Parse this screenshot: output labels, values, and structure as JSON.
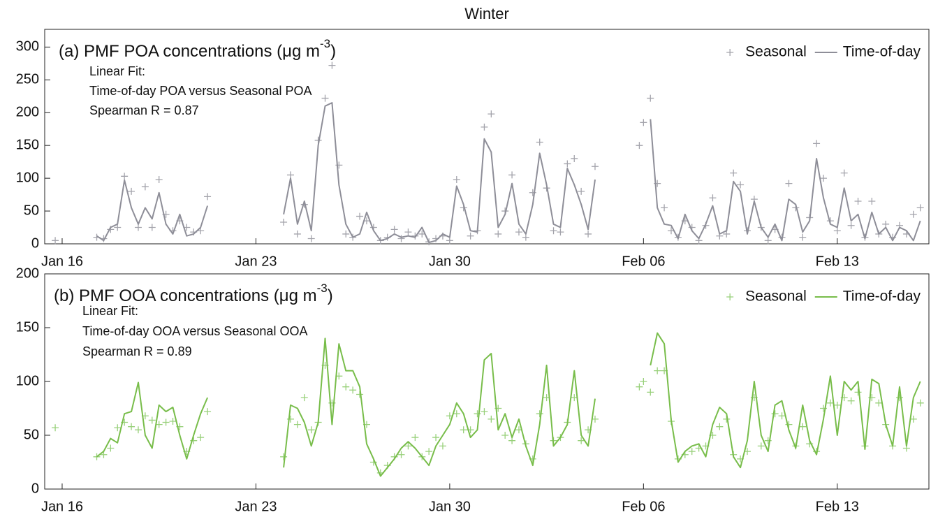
{
  "suptitle": "Winter",
  "chart_data": [
    {
      "type": "line",
      "title": [
        "(a) PMF POA concentrations (μg m",
        "-3",
        ")"
      ],
      "annotations": [
        "Linear Fit:",
        "Time-of-day POA versus Seasonal POA",
        "Spearman R = 0.87"
      ],
      "legend": "upper right",
      "xlim": [
        15.37,
        47.31
      ],
      "xticks": [
        {
          "value": 16,
          "label": "Jan 16"
        },
        {
          "value": 23,
          "label": "Jan 23"
        },
        {
          "value": 30,
          "label": "Jan 30"
        },
        {
          "value": 37,
          "label": "Feb 06"
        },
        {
          "value": 44,
          "label": "Feb 13"
        }
      ],
      "ylim": [
        0,
        327
      ],
      "yticks": [
        0,
        50,
        100,
        150,
        200,
        250,
        300
      ],
      "x": [
        15.75,
        17.25,
        17.5,
        17.75,
        18,
        18.25,
        18.5,
        18.75,
        19,
        19.25,
        19.5,
        19.75,
        20,
        20.25,
        20.5,
        20.75,
        21,
        21.25,
        22.5,
        24,
        24.25,
        24.5,
        24.75,
        25,
        25.25,
        25.5,
        25.75,
        26,
        26.25,
        26.5,
        26.75,
        27,
        27.25,
        27.5,
        27.75,
        28,
        28.25,
        28.5,
        28.75,
        29,
        29.25,
        29.5,
        29.75,
        30,
        30.25,
        30.5,
        30.75,
        31,
        31.25,
        31.5,
        31.75,
        32,
        32.25,
        32.5,
        32.75,
        33,
        33.25,
        33.5,
        33.75,
        34,
        34.25,
        34.5,
        34.75,
        35,
        35.25,
        36.25,
        36.85,
        37,
        37.25,
        37.5,
        37.75,
        38,
        38.25,
        38.5,
        38.75,
        39,
        39.25,
        39.5,
        39.75,
        40,
        40.25,
        40.5,
        40.75,
        41,
        41.25,
        41.5,
        41.75,
        42,
        42.25,
        42.5,
        42.75,
        43,
        43.25,
        43.5,
        43.75,
        44,
        44.25,
        44.5,
        44.75,
        45,
        45.25,
        45.5,
        45.75,
        46,
        46.25,
        46.5,
        46.75,
        47
      ],
      "series": [
        {
          "name": "Seasonal",
          "mode": "markers",
          "color": "#a3a3ab",
          "values": [
            5,
            10,
            8,
            22,
            25,
            103,
            80,
            25,
            87,
            25,
            98,
            45,
            20,
            35,
            25,
            18,
            20,
            72,
            null,
            33,
            105,
            15,
            60,
            8,
            158,
            222,
            272,
            120,
            15,
            10,
            42,
            35,
            25,
            5,
            10,
            22,
            8,
            18,
            12,
            15,
            3,
            8,
            12,
            5,
            98,
            55,
            12,
            20,
            178,
            198,
            15,
            50,
            105,
            18,
            10,
            78,
            155,
            85,
            20,
            18,
            122,
            130,
            80,
            15,
            118,
            null,
            150,
            185,
            222,
            92,
            55,
            20,
            10,
            35,
            25,
            5,
            28,
            70,
            12,
            15,
            108,
            90,
            20,
            68,
            25,
            5,
            22,
            10,
            92,
            55,
            10,
            40,
            153,
            100,
            35,
            20,
            108,
            28,
            65,
            10,
            65,
            15,
            30,
            10,
            28,
            15,
            45,
            55
          ]
        },
        {
          "name": "Time-of-day",
          "mode": "lines",
          "color": "#8e8e98",
          "values": [
            null,
            12,
            5,
            25,
            30,
            97,
            55,
            30,
            55,
            38,
            78,
            30,
            15,
            45,
            12,
            15,
            25,
            58,
            null,
            45,
            100,
            30,
            65,
            20,
            150,
            210,
            215,
            90,
            30,
            10,
            15,
            48,
            20,
            5,
            8,
            15,
            10,
            12,
            10,
            25,
            2,
            5,
            15,
            10,
            88,
            60,
            20,
            18,
            160,
            140,
            25,
            45,
            92,
            30,
            15,
            60,
            138,
            90,
            30,
            25,
            115,
            90,
            60,
            22,
            98,
            null,
            null,
            null,
            190,
            55,
            30,
            28,
            8,
            45,
            20,
            8,
            30,
            58,
            15,
            20,
            95,
            80,
            15,
            65,
            25,
            10,
            30,
            5,
            68,
            60,
            18,
            35,
            130,
            70,
            30,
            25,
            85,
            35,
            45,
            8,
            48,
            15,
            25,
            5,
            25,
            20,
            5,
            35
          ]
        }
      ]
    },
    {
      "type": "line",
      "title": [
        "(b) PMF OOA concentrations (μg m",
        "-3",
        ")"
      ],
      "annotations": [
        "Linear Fit:",
        "Time-of-day OOA versus Seasonal OOA",
        "Spearman R = 0.89"
      ],
      "legend": "upper right",
      "xlim": [
        15.37,
        47.31
      ],
      "xticks": [
        {
          "value": 16,
          "label": "Jan 16"
        },
        {
          "value": 23,
          "label": "Jan 23"
        },
        {
          "value": 30,
          "label": "Jan 30"
        },
        {
          "value": 37,
          "label": "Feb 06"
        },
        {
          "value": 44,
          "label": "Feb 13"
        }
      ],
      "ylim": [
        0,
        200
      ],
      "yticks": [
        0,
        50,
        100,
        150,
        200
      ],
      "x": [
        15.75,
        17.25,
        17.5,
        17.75,
        18,
        18.25,
        18.5,
        18.75,
        19,
        19.25,
        19.5,
        19.75,
        20,
        20.25,
        20.5,
        20.75,
        21,
        21.25,
        22.5,
        24,
        24.25,
        24.5,
        24.75,
        25,
        25.25,
        25.5,
        25.75,
        26,
        26.25,
        26.5,
        26.75,
        27,
        27.25,
        27.5,
        27.75,
        28,
        28.25,
        28.5,
        28.75,
        29,
        29.25,
        29.5,
        29.75,
        30,
        30.25,
        30.5,
        30.75,
        31,
        31.25,
        31.5,
        31.75,
        32,
        32.25,
        32.5,
        32.75,
        33,
        33.25,
        33.5,
        33.75,
        34,
        34.25,
        34.5,
        34.75,
        35,
        35.25,
        36.25,
        36.85,
        37,
        37.25,
        37.5,
        37.75,
        38,
        38.25,
        38.5,
        38.75,
        39,
        39.25,
        39.5,
        39.75,
        40,
        40.25,
        40.5,
        40.75,
        41,
        41.25,
        41.5,
        41.75,
        42,
        42.25,
        42.5,
        42.75,
        43,
        43.25,
        43.5,
        43.75,
        44,
        44.25,
        44.5,
        44.75,
        45,
        45.25,
        45.5,
        45.75,
        46,
        46.25,
        46.5,
        46.75,
        47
      ],
      "series": [
        {
          "name": "Seasonal",
          "mode": "markers",
          "color": "#98d07a",
          "values": [
            57,
            30,
            32,
            38,
            57,
            62,
            58,
            55,
            68,
            64,
            60,
            62,
            63,
            58,
            35,
            45,
            48,
            72,
            null,
            30,
            65,
            60,
            85,
            55,
            62,
            115,
            80,
            105,
            95,
            92,
            88,
            60,
            25,
            15,
            22,
            30,
            32,
            40,
            48,
            30,
            35,
            48,
            40,
            68,
            70,
            55,
            55,
            70,
            72,
            65,
            75,
            50,
            45,
            55,
            42,
            28,
            70,
            85,
            45,
            48,
            62,
            85,
            45,
            55,
            65,
            null,
            95,
            100,
            90,
            110,
            110,
            63,
            28,
            32,
            35,
            38,
            40,
            50,
            58,
            65,
            32,
            28,
            35,
            85,
            40,
            45,
            70,
            68,
            60,
            40,
            58,
            42,
            35,
            75,
            80,
            78,
            85,
            82,
            90,
            40,
            85,
            80,
            60,
            40,
            85,
            38,
            65,
            80
          ]
        },
        {
          "name": "Time-of-day",
          "mode": "lines",
          "color": "#78bd4a",
          "values": [
            null,
            30,
            35,
            47,
            43,
            70,
            72,
            99,
            50,
            38,
            78,
            72,
            76,
            50,
            28,
            50,
            70,
            85,
            null,
            20,
            78,
            75,
            62,
            40,
            62,
            140,
            60,
            135,
            110,
            110,
            95,
            42,
            28,
            12,
            20,
            28,
            38,
            44,
            38,
            30,
            22,
            40,
            50,
            60,
            80,
            70,
            48,
            55,
            120,
            126,
            55,
            70,
            48,
            65,
            40,
            22,
            60,
            115,
            40,
            48,
            60,
            110,
            50,
            40,
            84,
            null,
            null,
            null,
            115,
            145,
            135,
            64,
            25,
            35,
            40,
            42,
            30,
            60,
            76,
            70,
            30,
            20,
            45,
            100,
            50,
            35,
            78,
            82,
            55,
            38,
            78,
            45,
            32,
            65,
            105,
            50,
            100,
            92,
            100,
            37,
            102,
            98,
            60,
            40,
            95,
            40,
            85,
            100
          ]
        }
      ]
    }
  ]
}
